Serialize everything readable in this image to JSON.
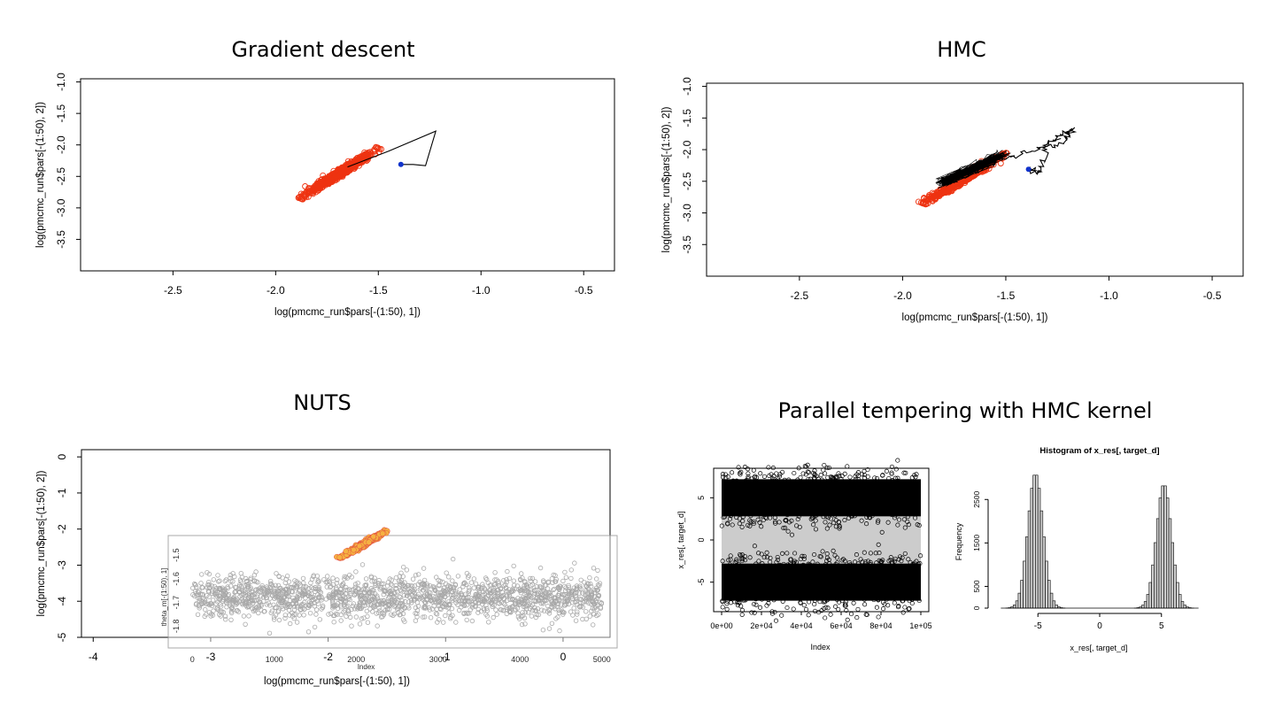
{
  "panels": {
    "gd": {
      "title": "Gradient descent"
    },
    "hmc": {
      "title": "HMC"
    },
    "nuts": {
      "title": "NUTS"
    },
    "pt": {
      "title": "Parallel tempering with HMC kernel"
    }
  },
  "chart_data": [
    {
      "id": "gd",
      "type": "scatter",
      "title": "Gradient descent",
      "xlabel": "log(pmcmc_run$pars[-(1:50), 1])",
      "ylabel": "log(pmcmc_run$pars[-(1:50), 2])",
      "xlim": [
        -2.95,
        -0.35
      ],
      "ylim": [
        -4.0,
        -0.95
      ],
      "x_ticks": [
        -2.5,
        -2.0,
        -1.5,
        -1.0,
        -0.5
      ],
      "x_tick_labels": [
        "-2.5",
        "-2.0",
        "-1.5",
        "-1.0",
        "-0.5"
      ],
      "y_ticks": [
        -1.0,
        -1.5,
        -2.0,
        -2.5,
        -3.0,
        -3.5
      ],
      "y_tick_labels": [
        "-1.0",
        "-1.5",
        "-2.0",
        "-2.5",
        "-3.0",
        "-3.5"
      ],
      "cloud": {
        "x_range": [
          -1.88,
          -1.5
        ],
        "y_range": [
          -2.85,
          -2.05
        ],
        "color": "#ee3311"
      },
      "path": {
        "x": [
          -1.65,
          -1.45,
          -1.22,
          -1.27,
          -1.33,
          -1.39
        ],
        "y": [
          -2.35,
          -2.1,
          -1.78,
          -2.33,
          -2.31,
          -2.31
        ],
        "color": "#000000"
      },
      "start_point": {
        "x": -1.39,
        "y": -2.31,
        "color": "#1133cc"
      }
    },
    {
      "id": "hmc",
      "type": "scatter",
      "title": "HMC",
      "xlabel": "log(pmcmc_run$pars[-(1:50), 1])",
      "ylabel": "log(pmcmc_run$pars[-(1:50), 2])",
      "xlim": [
        -2.95,
        -0.35
      ],
      "ylim": [
        -4.0,
        -0.95
      ],
      "x_ticks": [
        -2.5,
        -2.0,
        -1.5,
        -1.0,
        -0.5
      ],
      "x_tick_labels": [
        "-2.5",
        "-2.0",
        "-1.5",
        "-1.0",
        "-0.5"
      ],
      "y_ticks": [
        -1.0,
        -1.5,
        -2.0,
        -2.5,
        -3.0,
        -3.5
      ],
      "y_tick_labels": [
        "-1.0",
        "-1.5",
        "-2.0",
        "-2.5",
        "-3.0",
        "-3.5"
      ],
      "cloud": {
        "x_range": [
          -1.9,
          -1.5
        ],
        "y_range": [
          -2.85,
          -2.05
        ],
        "color": "#ee3311"
      },
      "path": {
        "x": [
          -1.8,
          -1.65,
          -1.5,
          -1.4,
          -1.3,
          -1.25,
          -1.2,
          -1.18,
          -1.22,
          -1.3,
          -1.33,
          -1.36,
          -1.39
        ],
        "y": [
          -2.5,
          -2.35,
          -2.15,
          -2.05,
          -1.92,
          -1.8,
          -1.72,
          -1.67,
          -1.9,
          -2.0,
          -2.35,
          -2.33,
          -2.31
        ],
        "color": "#000000"
      },
      "start_point": {
        "x": -1.39,
        "y": -2.31,
        "color": "#1133cc"
      }
    },
    {
      "id": "nuts",
      "type": "scatter",
      "title": "NUTS",
      "xlabel": "log(pmcmc_run$pars[-(1:50), 1])",
      "ylabel": "log(pmcmc_run$pars[-(1:50), 2])",
      "xlim": [
        -4.1,
        0.4
      ],
      "ylim": [
        -5.0,
        0.2
      ],
      "x_ticks": [
        -4,
        -3,
        -2,
        -1,
        0
      ],
      "x_tick_labels": [
        "-4",
        "-3",
        "-2",
        "-1",
        "0"
      ],
      "y_ticks": [
        0,
        -1,
        -2,
        -3,
        -4,
        -5
      ],
      "y_tick_labels": [
        "0",
        "-1",
        "-2",
        "-3",
        "-4",
        "-5"
      ],
      "cloud": {
        "x_range": [
          -1.9,
          -1.5
        ],
        "y_range": [
          -2.8,
          -2.05
        ],
        "color": "#f5b142",
        "edge_color": "#e04040"
      },
      "inset": {
        "type": "scatter",
        "xlabel": "Index",
        "ylabel": "theta_m[-(1:50), 1]",
        "xlim": [
          -100,
          5100
        ],
        "ylim": [
          -1.84,
          -1.44
        ],
        "x_ticks": [
          0,
          1000,
          2000,
          3000,
          4000,
          5000
        ],
        "x_tick_labels": [
          "0",
          "1000",
          "2000",
          "3000",
          "4000",
          "5000"
        ],
        "y_ticks": [
          -1.5,
          -1.6,
          -1.7,
          -1.8
        ],
        "y_tick_labels": [
          "-1.5",
          "-1.6",
          "-1.7",
          "-1.8"
        ],
        "n_points": 1700,
        "mean": -1.68,
        "color": "#9a9a9a"
      }
    },
    {
      "id": "pt_trace",
      "type": "scatter",
      "xlabel": "Index",
      "ylabel": "x_res[, target_d]",
      "xlim": [
        -4000,
        104000
      ],
      "ylim": [
        -8.5,
        8.5
      ],
      "x_ticks": [
        0,
        20000,
        40000,
        60000,
        80000,
        100000
      ],
      "x_tick_labels": [
        "0e+00",
        "2e+04",
        "4e+04",
        "6e+04",
        "8e+04",
        "1e+05"
      ],
      "y_ticks": [
        5,
        0,
        -5
      ],
      "y_tick_labels": [
        "5",
        "0",
        "-5"
      ],
      "modes": [
        5,
        -5
      ],
      "band_color": "#cccccc"
    },
    {
      "id": "pt_hist",
      "type": "bar",
      "title": "Histogram of x_res[, target_d]",
      "xlabel": "x_res[, target_d]",
      "ylabel": "Frequency",
      "xlim": [
        -8.6,
        8.6
      ],
      "ylim": [
        0,
        3300
      ],
      "x_ticks": [
        -5,
        0,
        5
      ],
      "x_tick_labels": [
        "-5",
        "0",
        "5"
      ],
      "y_ticks": [
        0,
        500,
        1500,
        2500
      ],
      "y_tick_labels": [
        "0",
        "500",
        "1500",
        "2500"
      ],
      "bin_width": 0.2,
      "modes": [
        {
          "center": -5.2,
          "peak": 3100,
          "sd": 0.62
        },
        {
          "center": 5.2,
          "peak": 2850,
          "sd": 0.62
        }
      ]
    }
  ]
}
